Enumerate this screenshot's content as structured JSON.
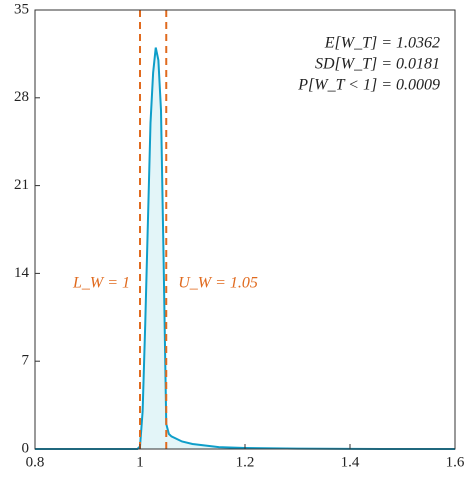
{
  "chart_data": {
    "type": "area",
    "x": [
      0.8,
      0.9,
      0.995,
      1.0,
      1.005,
      1.01,
      1.015,
      1.02,
      1.025,
      1.03,
      1.035,
      1.04,
      1.045,
      1.05,
      1.055,
      1.06,
      1.08,
      1.1,
      1.12,
      1.15,
      1.2,
      1.3,
      1.4,
      1.5,
      1.6
    ],
    "values": [
      0,
      0,
      0,
      0.2,
      3,
      10,
      18,
      26,
      30,
      32,
      31,
      27,
      15,
      2,
      1.2,
      1.0,
      0.6,
      0.4,
      0.3,
      0.15,
      0.08,
      0.03,
      0.01,
      0,
      0
    ],
    "color": "#0e9ec9",
    "fill": "#e3f5f8",
    "xlim": [
      0.8,
      1.6
    ],
    "xticks": [
      0.8,
      1,
      1.2,
      1.4,
      1.6
    ],
    "ylim": [
      0,
      35
    ],
    "yticks": [
      0,
      7,
      14,
      21,
      28,
      35
    ],
    "vlines": [
      {
        "x": 1,
        "label": "L_W = 1"
      },
      {
        "x": 1.05,
        "label": "U_W = 1.05"
      }
    ],
    "vline_color": "#e06a1e",
    "annotations": [
      "E[W_T] = 1.0362",
      "SD[W_T] = 0.0181",
      "P[W_T < 1] = 0.0009"
    ]
  }
}
